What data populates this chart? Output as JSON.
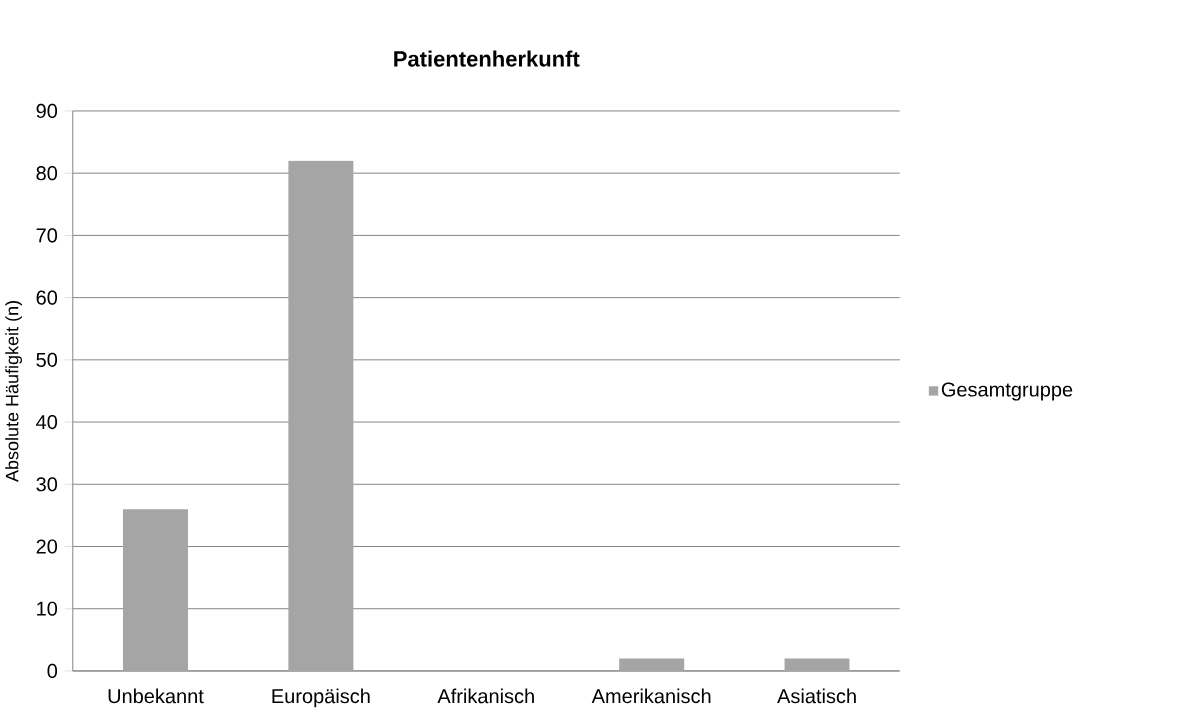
{
  "chart_data": {
    "type": "bar",
    "title": "Patientenherkunft",
    "ylabel": "Absolute Häufigkeit (n)",
    "categories": [
      "Unbekannt",
      "Europäisch",
      "Afrikanisch",
      "Amerikanisch",
      "Asiatisch"
    ],
    "series": [
      {
        "name": "Gesamtgruppe",
        "color": "#a5a5a5",
        "values": [
          26,
          82,
          0,
          2,
          2
        ]
      }
    ],
    "ylim": [
      0,
      90
    ],
    "yticks": [
      0,
      10,
      20,
      30,
      40,
      50,
      60,
      70,
      80,
      90
    ],
    "grid": "y",
    "legend": "right"
  }
}
